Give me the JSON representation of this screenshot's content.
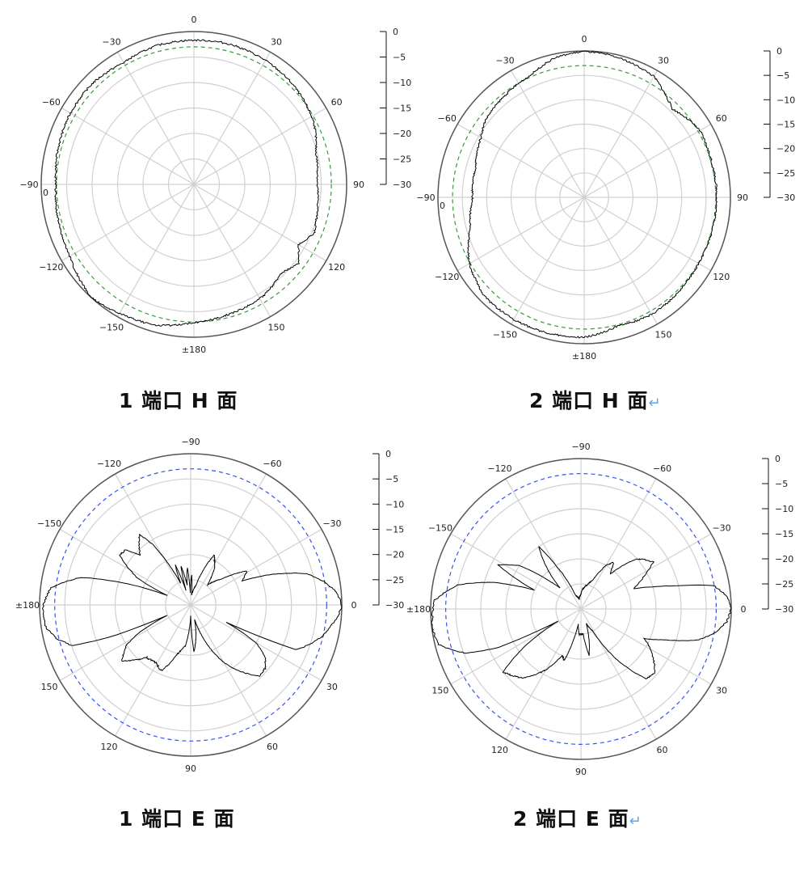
{
  "chart_data": [
    {
      "type": "polar-line",
      "title": "1 端口 H 面",
      "angle_convention": "0 at top, clockwise",
      "angular_tick_labels": [
        "0",
        "30",
        "60",
        "90",
        "120",
        "150",
        "±180",
        "−150",
        "−120",
        "−90",
        "−60",
        "−30"
      ],
      "extra_label": "0",
      "radial_ticks": [
        "0",
        "−5",
        "−10",
        "−15",
        "−20",
        "−25",
        "−30"
      ],
      "rlim_db": [
        -30,
        0
      ],
      "reference_circle": {
        "db": -3,
        "color": "#3a9a3a",
        "style": "dashed"
      },
      "grid": true,
      "series_color": "#000000",
      "points": [
        [
          -180,
          -2.9
        ],
        [
          -165,
          -1.4
        ],
        [
          -150,
          -0.8
        ],
        [
          -138,
          0
        ],
        [
          -120,
          -1.8
        ],
        [
          -105,
          -2.4
        ],
        [
          -90,
          -2.9
        ],
        [
          -75,
          -2.4
        ],
        [
          -60,
          -2
        ],
        [
          -45,
          -1.9
        ],
        [
          -30,
          -2.4
        ],
        [
          -15,
          -1.8
        ],
        [
          0,
          -1.7
        ],
        [
          15,
          -1.6
        ],
        [
          30,
          -1.9
        ],
        [
          45,
          -2.4
        ],
        [
          63,
          -3.5
        ],
        [
          75,
          -5.2
        ],
        [
          90,
          -5.8
        ],
        [
          106,
          -5
        ],
        [
          112,
          -4.5
        ],
        [
          120,
          -6.3
        ],
        [
          127,
          -4.3
        ],
        [
          135,
          -5.6
        ],
        [
          148,
          -4.2
        ],
        [
          165,
          -3.6
        ],
        [
          180,
          -2.9
        ]
      ]
    },
    {
      "type": "polar-line",
      "title": "2 端口 H 面",
      "angle_convention": "0 at top, clockwise",
      "angular_tick_labels": [
        "0",
        "30",
        "60",
        "90",
        "120",
        "150",
        "±180",
        "−150",
        "−120",
        "−90",
        "−60",
        "−30"
      ],
      "extra_label": "0",
      "radial_ticks": [
        "0",
        "−5",
        "−10",
        "−15",
        "−20",
        "−25",
        "−30"
      ],
      "rlim_db": [
        -30,
        0
      ],
      "reference_circle": {
        "db": -3,
        "color": "#3a9a3a",
        "style": "dashed"
      },
      "grid": true,
      "series_color": "#000000",
      "points": [
        [
          -180,
          -1.3
        ],
        [
          -165,
          -1.2
        ],
        [
          -150,
          -1.1
        ],
        [
          -135,
          -1.2
        ],
        [
          -120,
          -2.8
        ],
        [
          -105,
          -5.8
        ],
        [
          -90,
          -7.1
        ],
        [
          -75,
          -6.9
        ],
        [
          -60,
          -5.5
        ],
        [
          -52,
          -4.3
        ],
        [
          -37,
          -3.5
        ],
        [
          -24,
          -2.7
        ],
        [
          -12,
          -0.8
        ],
        [
          0,
          -0.1
        ],
        [
          15,
          -0.6
        ],
        [
          30,
          -1.4
        ],
        [
          40,
          -3.5
        ],
        [
          45,
          -4.4
        ],
        [
          52,
          -3.5
        ],
        [
          60,
          -2.6
        ],
        [
          75,
          -2.9
        ],
        [
          90,
          -2.8
        ],
        [
          105,
          -2.9
        ],
        [
          120,
          -2.9
        ],
        [
          135,
          -2.6
        ],
        [
          150,
          -2.3
        ],
        [
          165,
          -2.8
        ],
        [
          180,
          -1.3
        ]
      ]
    },
    {
      "type": "polar-line",
      "title": "1 端口 E 面",
      "angle_convention": "0 at right, clockwise",
      "angular_tick_labels": [
        "0",
        "30",
        "60",
        "90",
        "120",
        "150",
        "±180",
        "−150",
        "−120",
        "−90",
        "−60",
        "−30"
      ],
      "radial_ticks": [
        "0",
        "−5",
        "−10",
        "−15",
        "−20",
        "−25",
        "−30"
      ],
      "rlim_db": [
        -30,
        0
      ],
      "reference_circle": {
        "db": -3,
        "color": "#3355ee",
        "style": "dashed"
      },
      "grid": true,
      "series_color": "#000000",
      "points": [
        [
          -180,
          -0.7
        ],
        [
          -173,
          -2
        ],
        [
          -166,
          -7.5
        ],
        [
          -160,
          -20
        ],
        [
          -158,
          -25
        ],
        [
          -153,
          -18
        ],
        [
          -145,
          -12.8
        ],
        [
          -140,
          -13
        ],
        [
          -135.5,
          -15.9
        ],
        [
          -130,
          -14
        ],
        [
          -126,
          -12.8
        ],
        [
          -122,
          -16
        ],
        [
          -115,
          -25.3
        ],
        [
          -111,
          -21.4
        ],
        [
          -108,
          -27
        ],
        [
          -104,
          -22
        ],
        [
          -100,
          -26
        ],
        [
          -95,
          -22.5
        ],
        [
          -92,
          -27.5
        ],
        [
          -88,
          -24
        ],
        [
          -85,
          -28
        ],
        [
          -75,
          -26
        ],
        [
          -65,
          -19.1
        ],
        [
          -58,
          -21
        ],
        [
          -50,
          -24.8
        ],
        [
          -40,
          -22
        ],
        [
          -31,
          -17
        ],
        [
          -25,
          -18.7
        ],
        [
          -21,
          -13.3
        ],
        [
          -15,
          -6
        ],
        [
          -10,
          -3.2
        ],
        [
          -5,
          -1
        ],
        [
          0,
          0
        ],
        [
          5,
          -0.8
        ],
        [
          13,
          -3
        ],
        [
          18,
          -5
        ],
        [
          23,
          -7.3
        ],
        [
          26,
          -22
        ],
        [
          30,
          -15
        ],
        [
          35,
          -12
        ],
        [
          40,
          -10.6
        ],
        [
          46,
          -10.4
        ],
        [
          52,
          -13
        ],
        [
          60,
          -16.8
        ],
        [
          68,
          -22
        ],
        [
          75,
          -27
        ],
        [
          80,
          -24
        ],
        [
          86,
          -20.6
        ],
        [
          90,
          -28
        ],
        [
          97,
          -22
        ],
        [
          105,
          -20
        ],
        [
          114,
          -15.7
        ],
        [
          121,
          -16.6
        ],
        [
          130,
          -16.4
        ],
        [
          141,
          -12.4
        ],
        [
          148,
          -15
        ],
        [
          152,
          -18.6
        ],
        [
          156,
          -25
        ],
        [
          158,
          -14
        ],
        [
          161,
          -5.2
        ],
        [
          166,
          -2.5
        ],
        [
          172,
          -0.7
        ],
        [
          180,
          -0.7
        ]
      ]
    },
    {
      "type": "polar-line",
      "title": "2 端口 E 面",
      "angle_convention": "0 at right, clockwise",
      "angular_tick_labels": [
        "0",
        "30",
        "60",
        "90",
        "120",
        "150",
        "±180",
        "−150",
        "−120",
        "−90",
        "−60",
        "−30"
      ],
      "radial_ticks": [
        "0",
        "−5",
        "−10",
        "−15",
        "−20",
        "−25",
        "−30"
      ],
      "rlim_db": [
        -30,
        0
      ],
      "reference_circle": {
        "db": -3,
        "color": "#3355ee",
        "style": "dashed"
      },
      "grid": true,
      "series_color": "#000000",
      "points": [
        [
          -180,
          -0.5
        ],
        [
          -177,
          -0.5
        ],
        [
          -169,
          -4.9
        ],
        [
          -163,
          -12
        ],
        [
          -158,
          -20
        ],
        [
          -152,
          -11.3
        ],
        [
          -145,
          -15
        ],
        [
          -138,
          -22
        ],
        [
          -135,
          -24
        ],
        [
          -128,
          -18
        ],
        [
          -124,
          -15
        ],
        [
          -120,
          -20
        ],
        [
          -112,
          -27
        ],
        [
          -100,
          -28
        ],
        [
          -90,
          -27
        ],
        [
          -85,
          -26
        ],
        [
          -75,
          -25
        ],
        [
          -68,
          -23.9
        ],
        [
          -60,
          -20
        ],
        [
          -55,
          -18.7
        ],
        [
          -50,
          -21
        ],
        [
          -42,
          -15
        ],
        [
          -33,
          -12.8
        ],
        [
          -27,
          -16
        ],
        [
          -21,
          -18.8
        ],
        [
          -17,
          -15
        ],
        [
          -14,
          -11
        ],
        [
          -10,
          -3.1
        ],
        [
          -5,
          -0.8
        ],
        [
          0,
          0
        ],
        [
          5,
          -0.8
        ],
        [
          10,
          -2.8
        ],
        [
          15,
          -6
        ],
        [
          20,
          -12
        ],
        [
          25,
          -16
        ],
        [
          30,
          -14
        ],
        [
          37,
          -11.6
        ],
        [
          41,
          -10.6
        ],
        [
          47,
          -11
        ],
        [
          55,
          -18
        ],
        [
          62,
          -25
        ],
        [
          70,
          -27
        ],
        [
          80,
          -20.7
        ],
        [
          85,
          -25
        ],
        [
          94,
          -24.9
        ],
        [
          100,
          -27
        ],
        [
          108,
          -19.2
        ],
        [
          112,
          -20
        ],
        [
          120,
          -16
        ],
        [
          130,
          -12
        ],
        [
          141,
          -10
        ],
        [
          146,
          -16
        ],
        [
          152,
          -24.7
        ],
        [
          155,
          -12
        ],
        [
          159,
          -5.4
        ],
        [
          166,
          -0.7
        ],
        [
          173,
          0
        ],
        [
          180,
          -0.5
        ]
      ]
    }
  ],
  "return_mark": "↵"
}
